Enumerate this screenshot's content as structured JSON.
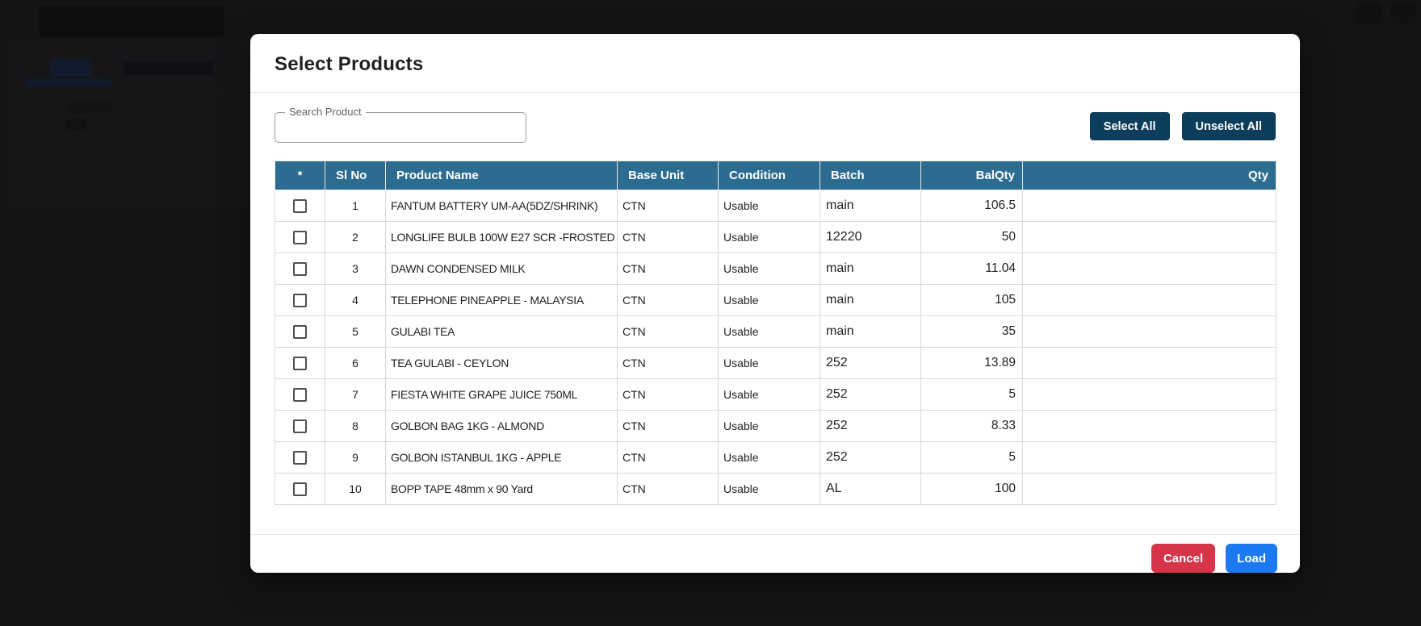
{
  "modal": {
    "title": "Select Products",
    "search": {
      "label": "Search Product",
      "value": ""
    },
    "actions": {
      "select_all": "Select All",
      "unselect_all": "Unselect All"
    },
    "table": {
      "columns": [
        "*",
        "Sl No",
        "Product Name",
        "Base Unit",
        "Condition",
        "Batch",
        "BalQty",
        "Qty"
      ],
      "rows": [
        {
          "sl": "1",
          "name": "FANTUM BATTERY UM-AA(5DZ/SHRINK)",
          "unit": "CTN",
          "condition": "Usable",
          "batch": "main",
          "balqty": "106.5",
          "qty": ""
        },
        {
          "sl": "2",
          "name": "LONGLIFE BULB 100W E27 SCR -FROSTED",
          "unit": "CTN",
          "condition": "Usable",
          "batch": "12220",
          "balqty": "50",
          "qty": ""
        },
        {
          "sl": "3",
          "name": "DAWN CONDENSED MILK",
          "unit": "CTN",
          "condition": "Usable",
          "batch": "main",
          "balqty": "11.04",
          "qty": ""
        },
        {
          "sl": "4",
          "name": "TELEPHONE PINEAPPLE - MALAYSIA",
          "unit": "CTN",
          "condition": "Usable",
          "batch": "main",
          "balqty": "105",
          "qty": ""
        },
        {
          "sl": "5",
          "name": "GULABI TEA",
          "unit": "CTN",
          "condition": "Usable",
          "batch": "main",
          "balqty": "35",
          "qty": ""
        },
        {
          "sl": "6",
          "name": "TEA GULABI - CEYLON",
          "unit": "CTN",
          "condition": "Usable",
          "batch": "252",
          "balqty": "13.89",
          "qty": ""
        },
        {
          "sl": "7",
          "name": "FIESTA WHITE GRAPE JUICE 750ML",
          "unit": "CTN",
          "condition": "Usable",
          "batch": "252",
          "balqty": "5",
          "qty": ""
        },
        {
          "sl": "8",
          "name": "GOLBON BAG 1KG - ALMOND",
          "unit": "CTN",
          "condition": "Usable",
          "batch": "252",
          "balqty": "8.33",
          "qty": ""
        },
        {
          "sl": "9",
          "name": "GOLBON ISTANBUL 1KG - APPLE",
          "unit": "CTN",
          "condition": "Usable",
          "batch": "252",
          "balqty": "5",
          "qty": ""
        },
        {
          "sl": "10",
          "name": "BOPP TAPE 48mm x 90 Yard",
          "unit": "CTN",
          "condition": "Usable",
          "batch": "AL",
          "balqty": "100",
          "qty": ""
        }
      ]
    },
    "footer": {
      "cancel": "Cancel",
      "load": "Load"
    }
  },
  "colors": {
    "table_header_bg": "#2c6c91",
    "navy_button_bg": "#0d3d5c",
    "cancel_button_bg": "#d53449",
    "load_button_bg": "#1b79f2",
    "overlay": "#131417"
  }
}
